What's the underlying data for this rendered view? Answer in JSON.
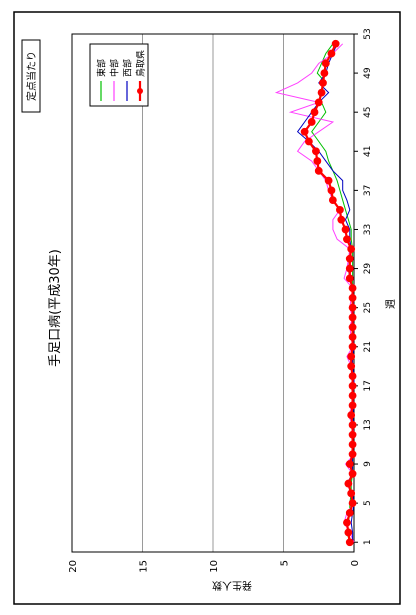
{
  "chart_data": {
    "type": "line",
    "title": "手足口病(平成30年)",
    "badge": "定点当たり",
    "xlabel": "週",
    "ylabel": "発生人数",
    "ylim": [
      0,
      20
    ],
    "y_ticks": [
      0,
      5,
      10,
      15,
      20
    ],
    "xlim": [
      0,
      53
    ],
    "x_ticks": [
      1,
      5,
      9,
      13,
      17,
      21,
      25,
      29,
      33,
      37,
      41,
      45,
      49,
      53
    ],
    "grid": true,
    "legend_position": "top-right",
    "series": [
      {
        "name": "東部",
        "color": "#00c000",
        "marker": false,
        "values": [
          0.3,
          0.5,
          0.4,
          0.3,
          0.3,
          0.2,
          0.2,
          0.1,
          0.1,
          0.1,
          0.1,
          0.1,
          0.1,
          0.1,
          0.1,
          0.1,
          0.1,
          0.1,
          0.2,
          0.1,
          0.1,
          0.1,
          0.1,
          0.1,
          0.1,
          0.1,
          0.1,
          0.1,
          0.1,
          0.1,
          0.1,
          0.2,
          0.2,
          0.4,
          0.6,
          0.8,
          1.0,
          1.2,
          1.5,
          1.8,
          2.0,
          2.5,
          3.0,
          2.5,
          2.0,
          2.3,
          2.5,
          2.0,
          2.6,
          2.3,
          2.0,
          1.5
        ]
      },
      {
        "name": "中部",
        "color": "#ff40ff",
        "marker": false,
        "values": [
          0,
          0.3,
          0.7,
          0.5,
          0,
          0.2,
          0.5,
          0.1,
          0.6,
          0,
          0.2,
          0,
          0.1,
          0.4,
          0.1,
          0.1,
          0.1,
          0.1,
          0.2,
          0.5,
          0.1,
          0.2,
          0.3,
          0.1,
          0.3,
          0.2,
          0.1,
          0.7,
          0.5,
          0.4,
          0.3,
          1.2,
          1.5,
          1.5,
          1.0,
          1.5,
          1.8,
          2.0,
          2.5,
          3.0,
          4.0,
          3.5,
          2.5,
          1.5,
          4.5,
          2.5,
          5.5,
          4.0,
          3.0,
          2.5,
          1.5,
          0.8
        ]
      },
      {
        "name": "西部",
        "color": "#0000c0",
        "marker": false,
        "values": [
          0.1,
          0.1,
          0.2,
          0.1,
          0,
          0.1,
          0.5,
          0.1,
          0.1,
          0.1,
          0.1,
          0.1,
          0,
          0.1,
          0,
          0.1,
          0,
          0,
          0.1,
          0.1,
          0,
          0.1,
          0,
          0.1,
          0,
          0.1,
          0.1,
          0.3,
          0.4,
          0.3,
          0.2,
          0.3,
          0.3,
          0.6,
          0.3,
          0.5,
          0.8,
          0.8,
          1.5,
          2.0,
          2.5,
          3.2,
          4.0,
          3.5,
          3.0,
          2.5,
          1.8,
          2.5,
          2.0,
          1.8,
          1.5,
          1.2
        ]
      },
      {
        "name": "鳥取県",
        "color": "#ff0000",
        "marker": true,
        "values": [
          0.3,
          0.4,
          0.5,
          0.3,
          0.1,
          0.2,
          0.4,
          0.1,
          0.3,
          0.1,
          0.1,
          0.1,
          0.1,
          0.2,
          0.1,
          0.1,
          0.1,
          0.1,
          0.2,
          0.2,
          0.1,
          0.1,
          0.1,
          0.1,
          0.1,
          0.1,
          0.1,
          0.3,
          0.3,
          0.3,
          0.2,
          0.5,
          0.6,
          0.9,
          1.0,
          1.5,
          1.6,
          1.8,
          2.5,
          2.6,
          2.7,
          3.2,
          3.5,
          3.0,
          2.8,
          2.5,
          2.3,
          2.2,
          2.1,
          2.0,
          1.6,
          1.3
        ]
      }
    ]
  }
}
